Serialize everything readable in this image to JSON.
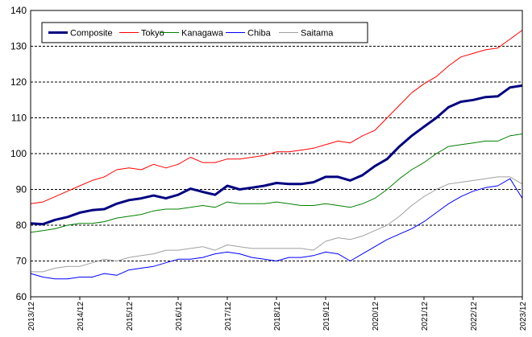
{
  "chart_data": {
    "type": "line",
    "ylim": [
      60,
      140
    ],
    "yticks": [
      60,
      70,
      80,
      90,
      100,
      110,
      120,
      130,
      140
    ],
    "xticks": [
      "2013/12",
      "2014/12",
      "2015/12",
      "2016/12",
      "2017/12",
      "2018/12",
      "2019/12",
      "2020/12",
      "2021/12",
      "2022/12",
      "2023/12"
    ],
    "grid": "horizontal dashed",
    "legend_position": "top-left",
    "series": [
      {
        "name": "Composite",
        "color": "#000080",
        "width": 3,
        "points": [
          [
            "2013/12",
            80.5
          ],
          [
            "2014/03",
            80.3
          ],
          [
            "2014/06",
            81.5
          ],
          [
            "2014/09",
            82.3
          ],
          [
            "2014/12",
            83.5
          ],
          [
            "2015/03",
            84.2
          ],
          [
            "2015/06",
            84.5
          ],
          [
            "2015/09",
            86.0
          ],
          [
            "2015/12",
            87.0
          ],
          [
            "2016/03",
            87.5
          ],
          [
            "2016/06",
            88.3
          ],
          [
            "2016/09",
            87.5
          ],
          [
            "2016/12",
            88.5
          ],
          [
            "2017/03",
            90.2
          ],
          [
            "2017/06",
            89.3
          ],
          [
            "2017/09",
            88.5
          ],
          [
            "2017/12",
            91.0
          ],
          [
            "2018/03",
            90.0
          ],
          [
            "2018/06",
            90.5
          ],
          [
            "2018/09",
            91.0
          ],
          [
            "2018/12",
            91.8
          ],
          [
            "2019/03",
            91.5
          ],
          [
            "2019/06",
            91.5
          ],
          [
            "2019/09",
            92.0
          ],
          [
            "2019/12",
            93.5
          ],
          [
            "2020/03",
            93.5
          ],
          [
            "2020/06",
            92.5
          ],
          [
            "2020/09",
            94.0
          ],
          [
            "2020/12",
            96.5
          ],
          [
            "2021/03",
            98.5
          ],
          [
            "2021/06",
            102.0
          ],
          [
            "2021/09",
            105.0
          ],
          [
            "2021/12",
            107.5
          ],
          [
            "2022/03",
            110.0
          ],
          [
            "2022/06",
            113.0
          ],
          [
            "2022/09",
            114.5
          ],
          [
            "2022/12",
            115.0
          ],
          [
            "2023/03",
            115.8
          ],
          [
            "2023/06",
            116.0
          ],
          [
            "2023/09",
            118.5
          ],
          [
            "2023/12",
            119.0
          ]
        ]
      },
      {
        "name": "Tokyo",
        "color": "#ff0000",
        "width": 1,
        "points": [
          [
            "2013/12",
            86.0
          ],
          [
            "2014/03",
            86.5
          ],
          [
            "2014/06",
            88.0
          ],
          [
            "2014/09",
            89.5
          ],
          [
            "2014/12",
            91.0
          ],
          [
            "2015/03",
            92.5
          ],
          [
            "2015/06",
            93.5
          ],
          [
            "2015/09",
            95.5
          ],
          [
            "2015/12",
            96.0
          ],
          [
            "2016/03",
            95.5
          ],
          [
            "2016/06",
            97.0
          ],
          [
            "2016/09",
            96.0
          ],
          [
            "2016/12",
            97.0
          ],
          [
            "2017/03",
            99.0
          ],
          [
            "2017/06",
            97.5
          ],
          [
            "2017/09",
            97.5
          ],
          [
            "2017/12",
            98.5
          ],
          [
            "2018/03",
            98.5
          ],
          [
            "2018/06",
            99.0
          ],
          [
            "2018/09",
            99.5
          ],
          [
            "2018/12",
            100.5
          ],
          [
            "2019/03",
            100.5
          ],
          [
            "2019/06",
            101.0
          ],
          [
            "2019/09",
            101.5
          ],
          [
            "2019/12",
            102.5
          ],
          [
            "2020/03",
            103.5
          ],
          [
            "2020/06",
            103.0
          ],
          [
            "2020/09",
            105.0
          ],
          [
            "2020/12",
            106.5
          ],
          [
            "2021/03",
            110.0
          ],
          [
            "2021/06",
            113.5
          ],
          [
            "2021/09",
            117.0
          ],
          [
            "2021/12",
            119.5
          ],
          [
            "2022/03",
            121.5
          ],
          [
            "2022/06",
            124.5
          ],
          [
            "2022/09",
            127.0
          ],
          [
            "2022/12",
            128.0
          ],
          [
            "2023/03",
            129.0
          ],
          [
            "2023/06",
            129.5
          ],
          [
            "2023/09",
            132.0
          ],
          [
            "2023/12",
            134.5
          ]
        ]
      },
      {
        "name": "Kanagawa",
        "color": "#008000",
        "width": 1,
        "points": [
          [
            "2013/12",
            78.0
          ],
          [
            "2014/03",
            78.5
          ],
          [
            "2014/06",
            79.0
          ],
          [
            "2014/09",
            80.0
          ],
          [
            "2014/12",
            80.5
          ],
          [
            "2015/03",
            80.5
          ],
          [
            "2015/06",
            81.0
          ],
          [
            "2015/09",
            82.0
          ],
          [
            "2015/12",
            82.5
          ],
          [
            "2016/03",
            83.0
          ],
          [
            "2016/06",
            84.0
          ],
          [
            "2016/09",
            84.5
          ],
          [
            "2016/12",
            84.5
          ],
          [
            "2017/03",
            85.0
          ],
          [
            "2017/06",
            85.5
          ],
          [
            "2017/09",
            85.0
          ],
          [
            "2017/12",
            86.5
          ],
          [
            "2018/03",
            86.0
          ],
          [
            "2018/06",
            86.0
          ],
          [
            "2018/09",
            86.0
          ],
          [
            "2018/12",
            86.5
          ],
          [
            "2019/03",
            86.0
          ],
          [
            "2019/06",
            85.5
          ],
          [
            "2019/09",
            85.5
          ],
          [
            "2019/12",
            86.0
          ],
          [
            "2020/03",
            85.5
          ],
          [
            "2020/06",
            85.0
          ],
          [
            "2020/09",
            86.0
          ],
          [
            "2020/12",
            87.5
          ],
          [
            "2021/03",
            90.0
          ],
          [
            "2021/06",
            93.0
          ],
          [
            "2021/09",
            95.5
          ],
          [
            "2021/12",
            97.5
          ],
          [
            "2022/03",
            100.0
          ],
          [
            "2022/06",
            102.0
          ],
          [
            "2022/09",
            102.5
          ],
          [
            "2022/12",
            103.0
          ],
          [
            "2023/03",
            103.5
          ],
          [
            "2023/06",
            103.5
          ],
          [
            "2023/09",
            105.0
          ],
          [
            "2023/12",
            105.5
          ]
        ]
      },
      {
        "name": "Chiba",
        "color": "#0000ff",
        "width": 1,
        "points": [
          [
            "2013/12",
            66.5
          ],
          [
            "2014/03",
            65.5
          ],
          [
            "2014/06",
            65.0
          ],
          [
            "2014/09",
            65.0
          ],
          [
            "2014/12",
            65.5
          ],
          [
            "2015/03",
            65.5
          ],
          [
            "2015/06",
            66.5
          ],
          [
            "2015/09",
            66.0
          ],
          [
            "2015/12",
            67.5
          ],
          [
            "2016/03",
            68.0
          ],
          [
            "2016/06",
            68.5
          ],
          [
            "2016/09",
            69.5
          ],
          [
            "2016/12",
            70.5
          ],
          [
            "2017/03",
            70.5
          ],
          [
            "2017/06",
            71.0
          ],
          [
            "2017/09",
            72.0
          ],
          [
            "2017/12",
            72.5
          ],
          [
            "2018/03",
            72.0
          ],
          [
            "2018/06",
            71.0
          ],
          [
            "2018/09",
            70.5
          ],
          [
            "2018/12",
            70.0
          ],
          [
            "2019/03",
            71.0
          ],
          [
            "2019/06",
            71.0
          ],
          [
            "2019/09",
            71.5
          ],
          [
            "2019/12",
            72.5
          ],
          [
            "2020/03",
            72.0
          ],
          [
            "2020/06",
            70.0
          ],
          [
            "2020/09",
            72.0
          ],
          [
            "2020/12",
            74.0
          ],
          [
            "2021/03",
            76.0
          ],
          [
            "2021/06",
            77.5
          ],
          [
            "2021/09",
            79.0
          ],
          [
            "2021/12",
            81.0
          ],
          [
            "2022/03",
            83.5
          ],
          [
            "2022/06",
            86.0
          ],
          [
            "2022/09",
            88.0
          ],
          [
            "2022/12",
            89.5
          ],
          [
            "2023/03",
            90.5
          ],
          [
            "2023/06",
            91.0
          ],
          [
            "2023/09",
            93.0
          ],
          [
            "2023/12",
            87.5
          ]
        ]
      },
      {
        "name": "Saitama",
        "color": "#a0a0a0",
        "width": 1,
        "points": [
          [
            "2013/12",
            67.0
          ],
          [
            "2014/03",
            67.0
          ],
          [
            "2014/06",
            68.0
          ],
          [
            "2014/09",
            68.5
          ],
          [
            "2014/12",
            68.5
          ],
          [
            "2015/03",
            69.5
          ],
          [
            "2015/06",
            70.5
          ],
          [
            "2015/09",
            70.0
          ],
          [
            "2015/12",
            71.0
          ],
          [
            "2016/03",
            71.5
          ],
          [
            "2016/06",
            72.0
          ],
          [
            "2016/09",
            73.0
          ],
          [
            "2016/12",
            73.0
          ],
          [
            "2017/03",
            73.5
          ],
          [
            "2017/06",
            74.0
          ],
          [
            "2017/09",
            73.0
          ],
          [
            "2017/12",
            74.5
          ],
          [
            "2018/03",
            74.0
          ],
          [
            "2018/06",
            73.5
          ],
          [
            "2018/09",
            73.5
          ],
          [
            "2018/12",
            73.5
          ],
          [
            "2019/03",
            73.5
          ],
          [
            "2019/06",
            73.5
          ],
          [
            "2019/09",
            73.0
          ],
          [
            "2019/12",
            75.5
          ],
          [
            "2020/03",
            76.5
          ],
          [
            "2020/06",
            76.0
          ],
          [
            "2020/09",
            77.0
          ],
          [
            "2020/12",
            78.5
          ],
          [
            "2021/03",
            80.0
          ],
          [
            "2021/06",
            82.5
          ],
          [
            "2021/09",
            85.5
          ],
          [
            "2021/12",
            88.0
          ],
          [
            "2022/03",
            90.0
          ],
          [
            "2022/06",
            91.5
          ],
          [
            "2022/09",
            92.0
          ],
          [
            "2022/12",
            92.5
          ],
          [
            "2023/03",
            93.0
          ],
          [
            "2023/06",
            93.5
          ],
          [
            "2023/09",
            93.5
          ],
          [
            "2023/12",
            91.5
          ]
        ]
      }
    ]
  }
}
